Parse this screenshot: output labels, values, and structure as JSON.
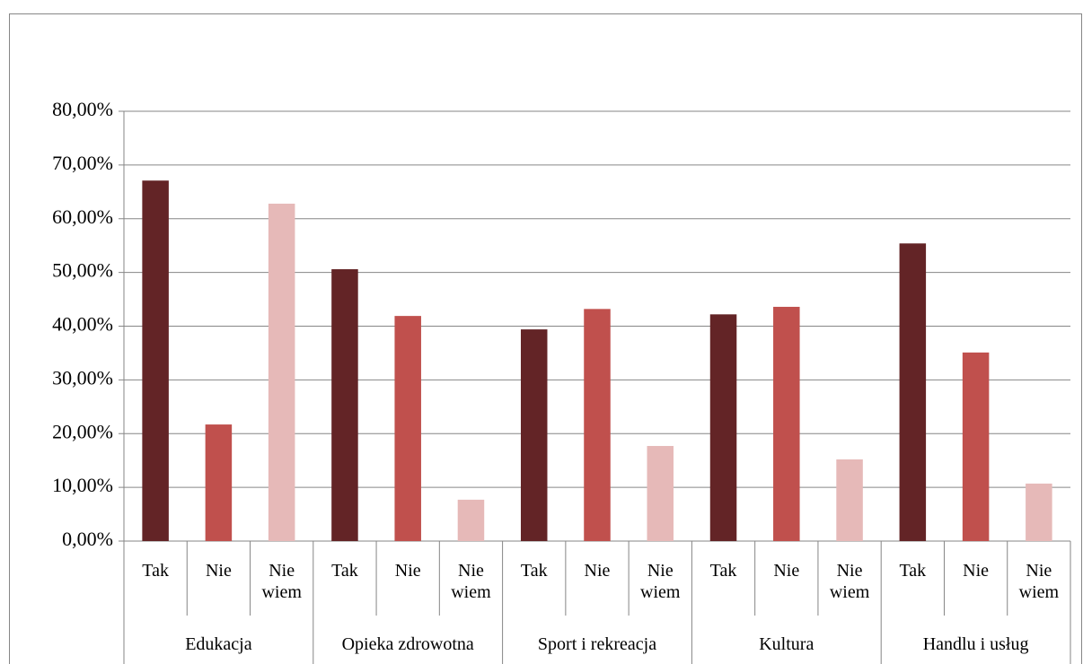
{
  "chart_data": {
    "type": "bar",
    "categories": [
      "Edukacja",
      "Opieka zdrowotna",
      "Sport i rekreacja",
      "Kultura",
      "Handlu i usług"
    ],
    "series": [
      {
        "name": "Tak",
        "color": "#632426",
        "values": [
          67.1,
          50.6,
          39.4,
          42.2,
          55.4
        ]
      },
      {
        "name": "Nie",
        "color": "#c0504d",
        "values": [
          21.7,
          41.9,
          43.2,
          43.6,
          35.1
        ]
      },
      {
        "name": "Nie wiem",
        "color": "#e6b9b8",
        "values": [
          62.8,
          7.7,
          17.7,
          15.2,
          10.7
        ]
      }
    ],
    "ylim": [
      0,
      80
    ],
    "yticks": [
      {
        "value": 0,
        "label": "0,00%"
      },
      {
        "value": 10,
        "label": "10,00%"
      },
      {
        "value": 20,
        "label": "20,00%"
      },
      {
        "value": 30,
        "label": "30,00%"
      },
      {
        "value": 40,
        "label": "40,00%"
      },
      {
        "value": 50,
        "label": "50,00%"
      },
      {
        "value": 60,
        "label": "60,00%"
      },
      {
        "value": 70,
        "label": "70,00%"
      },
      {
        "value": 80,
        "label": "80,00%"
      }
    ],
    "grid": true
  }
}
